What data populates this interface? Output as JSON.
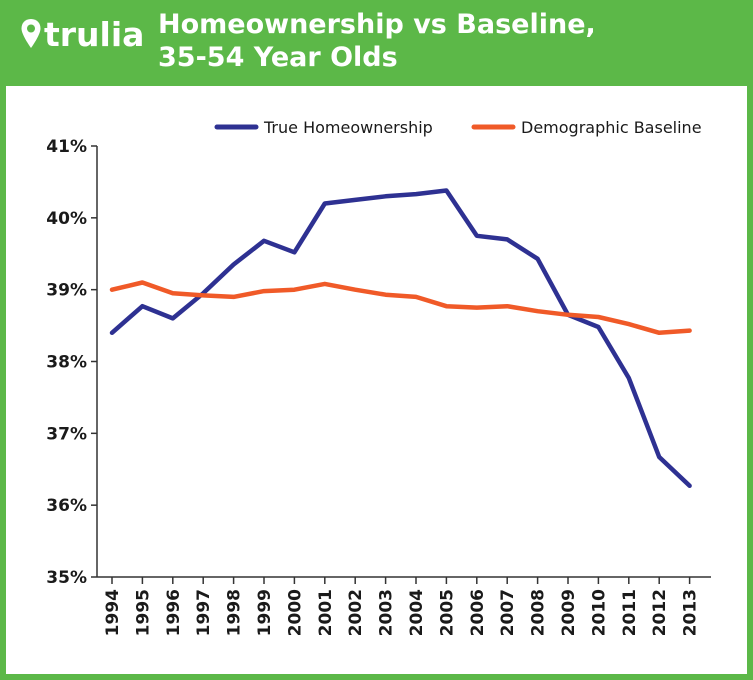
{
  "header": {
    "logo_text": "trulia",
    "title_line1": "Homeownership vs Baseline,",
    "title_line2": "35-54 Year Olds"
  },
  "colors": {
    "brand_green": "#5cb848",
    "true_series": "#2e3192",
    "baseline_series": "#f05a28"
  },
  "chart_data": {
    "type": "line",
    "title": "Homeownership vs Baseline, 35-54 Year Olds",
    "xlabel": "",
    "ylabel": "",
    "categories": [
      "1994",
      "1995",
      "1996",
      "1997",
      "1998",
      "1999",
      "2000",
      "2001",
      "2002",
      "2003",
      "2004",
      "2005",
      "2006",
      "2007",
      "2008",
      "2009",
      "2010",
      "2011",
      "2012",
      "2013"
    ],
    "ylim": [
      35,
      41
    ],
    "yticks": [
      35,
      36,
      37,
      38,
      39,
      40,
      41
    ],
    "ytick_labels": [
      "35%",
      "36%",
      "37%",
      "38%",
      "39%",
      "40%",
      "41%"
    ],
    "legend_position": "top-right",
    "series": [
      {
        "name": "True Homeownership",
        "values": [
          38.4,
          38.77,
          38.6,
          38.95,
          39.35,
          39.68,
          39.52,
          40.2,
          40.25,
          40.3,
          40.33,
          40.38,
          39.75,
          39.7,
          39.43,
          38.65,
          38.48,
          37.77,
          36.67,
          36.27
        ]
      },
      {
        "name": "Demographic Baseline",
        "values": [
          39.0,
          39.1,
          38.95,
          38.92,
          38.9,
          38.98,
          39.0,
          39.08,
          39.0,
          38.93,
          38.9,
          38.77,
          38.75,
          38.77,
          38.7,
          38.65,
          38.62,
          38.52,
          38.4,
          38.43
        ]
      }
    ]
  }
}
